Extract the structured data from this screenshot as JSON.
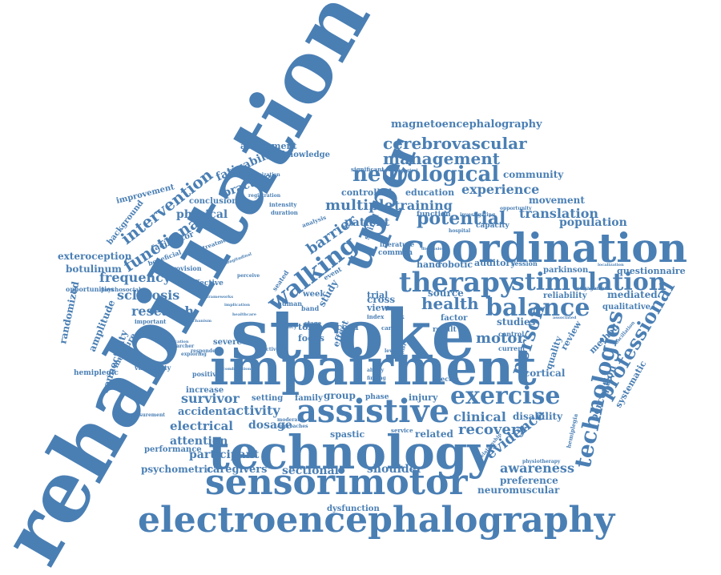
{
  "theme": {
    "word_color": "#4a7fb4",
    "background": "#ffffff"
  },
  "words": {
    "rehabilitation": "rehabilitation",
    "stroke": "stroke",
    "impairment": "impairment",
    "technology": "technology",
    "coordination": "coordination",
    "electroencephalography": "electroencephalography",
    "sensorimotor": "sensorimotor",
    "assistive": "assistive",
    "therapy": "therapy",
    "stimulation": "stimulation",
    "upper": "upper",
    "balance": "balance",
    "exercise": "exercise",
    "technologies": "technologies",
    "professional": "professional",
    "walking": "walking",
    "neurological": "neurological",
    "cerebrovascular": "cerebrovascular",
    "management": "management",
    "magnetoencephalography": "magnetoencephalography",
    "potential": "potential",
    "person": "person",
    "health": "health",
    "motor": "motor",
    "recovery": "recovery",
    "clinical": "clinical",
    "disability": "disability",
    "evidence": "evidence",
    "awareness": "awareness",
    "preference": "preference",
    "neuromuscular": "neuromuscular",
    "dysfunction": "dysfunction",
    "shoulder": "shoulder",
    "sectional": "sectional",
    "caregivers": "caregivers",
    "psychometric": "psychometric",
    "participant": "participant",
    "attention": "attention",
    "electrical": "electrical",
    "accident": "accident",
    "survivor": "survivor",
    "activity": "activity",
    "dosage": "dosage",
    "spastic": "spastic",
    "related": "related",
    "injury": "injury",
    "group": "group",
    "family": "family",
    "setting": "setting",
    "research": "research",
    "sclerosis": "sclerosis",
    "frequency": "frequency",
    "functional": "functional",
    "intervention": "intervention",
    "physical": "physical",
    "practice": "practice",
    "fatigability": "fatigability",
    "barrier": "barrier",
    "multiple": "multiple",
    "patient": "patient",
    "training": "training",
    "experience": "experience",
    "community": "community",
    "controlled": "controlled",
    "education": "education",
    "movement": "movement",
    "translation": "translation",
    "population": "population",
    "questionnaire": "questionnaire",
    "parkinson": "parkinson",
    "reliability": "reliability",
    "mediated": "mediated",
    "qualitative": "qualitative",
    "method": "method",
    "perception": "perception",
    "systematic": "systematic",
    "review": "review",
    "quality": "quality",
    "cortical": "cortical",
    "studies": "studies",
    "source": "source",
    "cross": "cross",
    "view": "view",
    "trial": "trial",
    "hand": "hand",
    "robotic": "robotic",
    "auditory": "auditory",
    "session": "session",
    "function": "function",
    "capacity": "capacity",
    "exteroception": "exteroception",
    "botulinum": "botulinum",
    "opportunities": "opportunities",
    "randomized": "randomized",
    "amplitude": "amplitude",
    "connectivity": "connectivity",
    "measure": "measure",
    "hemiplegic": "hemiplegic",
    "improvement": "improvement",
    "background": "background",
    "assessment": "assessment",
    "knowledge": "knowledge",
    "conclusion": "conclusion",
    "facilitator": "facilitator",
    "beneficial": "beneficial",
    "effective": "effective",
    "severe": "severe",
    "positive": "positive",
    "increase": "increase",
    "performance": "performance",
    "variability": "variability",
    "focus": "focus",
    "effect": "effect",
    "cord": "cord",
    "toxin": "toxin",
    "study": "study",
    "seated": "seated",
    "week": "week",
    "spinal": "spinal",
    "intensity": "intensity",
    "duration": "duration",
    "significant": "significant",
    "common": "common",
    "literature": "literature",
    "factor": "factor",
    "result": "result",
    "control": "control",
    "current": "current",
    "phase": "phase",
    "hemiplegia": "hemiplegia",
    "provision": "provision",
    "psychosocial": "psychosocial",
    "important": "important",
    "treatment": "treatment",
    "analysis": "analysis",
    "stage": "stage",
    "index": "index",
    "task": "task",
    "latency": "latency",
    "objective": "objective",
    "exploring": "exploring",
    "hospital": "hospital",
    "physiotherapy": "physiotherapy",
    "relationship": "relationship",
    "spectra": "spectra",
    "service": "service",
    "moderate": "moderate",
    "researcher": "researcher",
    "synchronization": "synchronization",
    "opportunity": "opportunity",
    "engagement": "engagement",
    "investigating": "investigating",
    "registration": "registration",
    "perceive": "perceive",
    "human": "human",
    "band": "band",
    "event": "event",
    "higher": "higher",
    "level": "level",
    "care": "care",
    "finding": "finding",
    "ability": "ability",
    "approaches": "approaches",
    "measurement": "measurement",
    "implication": "implication",
    "associated": "associated",
    "oscillation": "oscillation",
    "respondent": "respondent",
    "methodological": "methodological",
    "localization": "localization",
    "longitudinal": "longitudinal",
    "mechanism": "mechanism",
    "application": "application",
    "combination": "combination",
    "frameworks": "frameworks",
    "healthcare": "healthcare",
    "discussion": "discussion"
  }
}
